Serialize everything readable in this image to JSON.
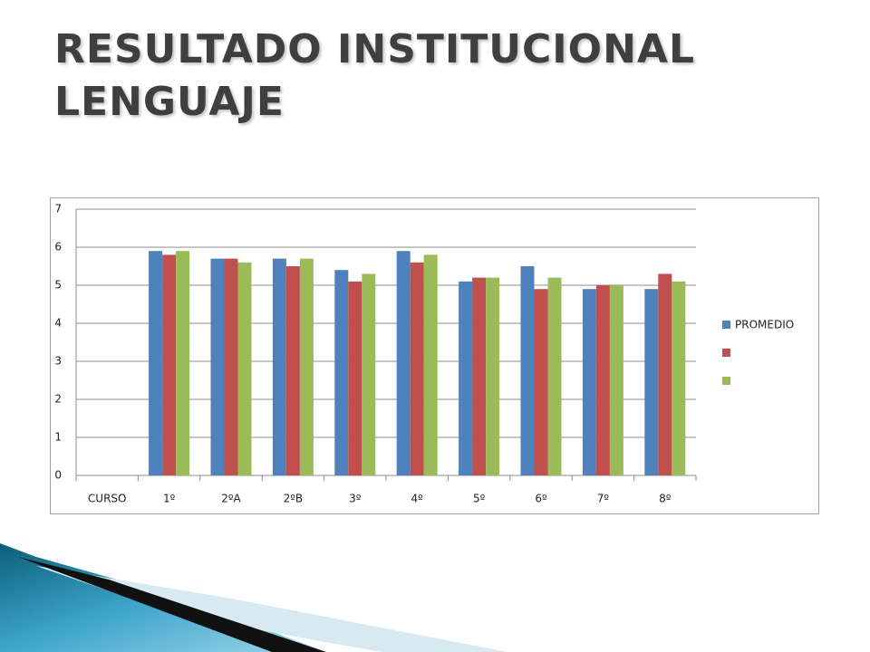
{
  "chart_data": {
    "type": "bar",
    "title": "RESULTADO INSTITUCIONAL LENGUAJE",
    "categories": [
      "CURSO",
      "1º",
      "2ºA",
      "2ºB",
      "3º",
      "4º",
      "5º",
      "6º",
      "7º",
      "8º"
    ],
    "series": [
      {
        "name": "PROMEDIO",
        "color": "#4f81bd",
        "values": [
          null,
          5.9,
          5.7,
          5.7,
          5.4,
          5.9,
          5.1,
          5.5,
          4.9,
          4.9
        ]
      },
      {
        "color": "#c0504d",
        "values": [
          null,
          5.8,
          5.7,
          5.5,
          5.1,
          5.6,
          5.2,
          4.9,
          5.0,
          5.3
        ]
      },
      {
        "color": "#9bbb59",
        "values": [
          null,
          5.9,
          5.6,
          5.7,
          5.3,
          5.8,
          5.2,
          5.2,
          5.0,
          5.1
        ]
      }
    ],
    "ylim": [
      0,
      7
    ],
    "yticks": [
      0,
      1,
      2,
      3,
      4,
      5,
      6,
      7
    ],
    "grid": true,
    "legend": "right"
  }
}
